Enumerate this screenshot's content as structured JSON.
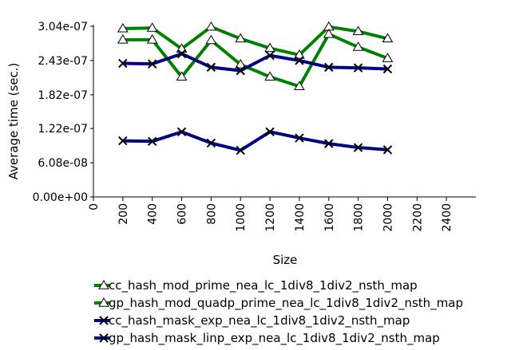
{
  "chart_data": {
    "type": "line",
    "title": "",
    "xlabel": "Size",
    "ylabel": "Average time (sec.)",
    "xlim": [
      0,
      2600
    ],
    "ylim": [
      0,
      3.04e-07
    ],
    "x_ticks": [
      0,
      200,
      400,
      600,
      800,
      1000,
      1200,
      1400,
      1600,
      1800,
      2000,
      2200,
      2400
    ],
    "x_tick_labels": [
      "0",
      "200",
      "400",
      "600",
      "800",
      "1000",
      "1200",
      "1400",
      "1600",
      "1800",
      "2000",
      "2200",
      "2400"
    ],
    "y_ticks": [
      0,
      6.08e-08,
      1.22e-07,
      1.82e-07,
      2.43e-07,
      3.04e-07
    ],
    "y_tick_labels": [
      "0.00e+00",
      "6.08e-08",
      "1.22e-07",
      "1.82e-07",
      "2.43e-07",
      "3.04e-07"
    ],
    "grid": false,
    "legend_position": "bottom",
    "x": [
      200,
      400,
      600,
      800,
      1000,
      1200,
      1400,
      1600,
      1800,
      2000
    ],
    "series": [
      {
        "name": "cc_hash_mod_prime_nea_lc_1div8_1div2_nsth_map",
        "color": "#008000",
        "marker": "triangle",
        "values": [
          3e-07,
          3.01e-07,
          2.64e-07,
          3.03e-07,
          2.82e-07,
          2.65e-07,
          2.53e-07,
          3.03e-07,
          2.95e-07,
          2.82e-07
        ]
      },
      {
        "name": "gp_hash_mod_quadp_prime_nea_lc_1div8_1div2_nsth_map",
        "color": "#008000",
        "marker": "triangle",
        "values": [
          2.8e-07,
          2.8e-07,
          2.14e-07,
          2.79e-07,
          2.36e-07,
          2.14e-07,
          1.97e-07,
          2.9e-07,
          2.67e-07,
          2.47e-07
        ]
      },
      {
        "name": "cc_hash_mask_exp_nea_lc_1div8_1div2_nsth_map",
        "color": "#000080",
        "marker": "x",
        "values": [
          2.38e-07,
          2.37e-07,
          2.55e-07,
          2.31e-07,
          2.25e-07,
          2.52e-07,
          2.43e-07,
          2.31e-07,
          2.3e-07,
          2.28e-07
        ]
      },
      {
        "name": "gp_hash_mask_linp_exp_nea_lc_1div8_1div2_nsth_map",
        "color": "#000080",
        "marker": "x",
        "values": [
          1e-07,
          9.9e-08,
          1.16e-07,
          9.6e-08,
          8.3e-08,
          1.16e-07,
          1.05e-07,
          9.5e-08,
          8.8e-08,
          8.4e-08
        ]
      }
    ]
  }
}
